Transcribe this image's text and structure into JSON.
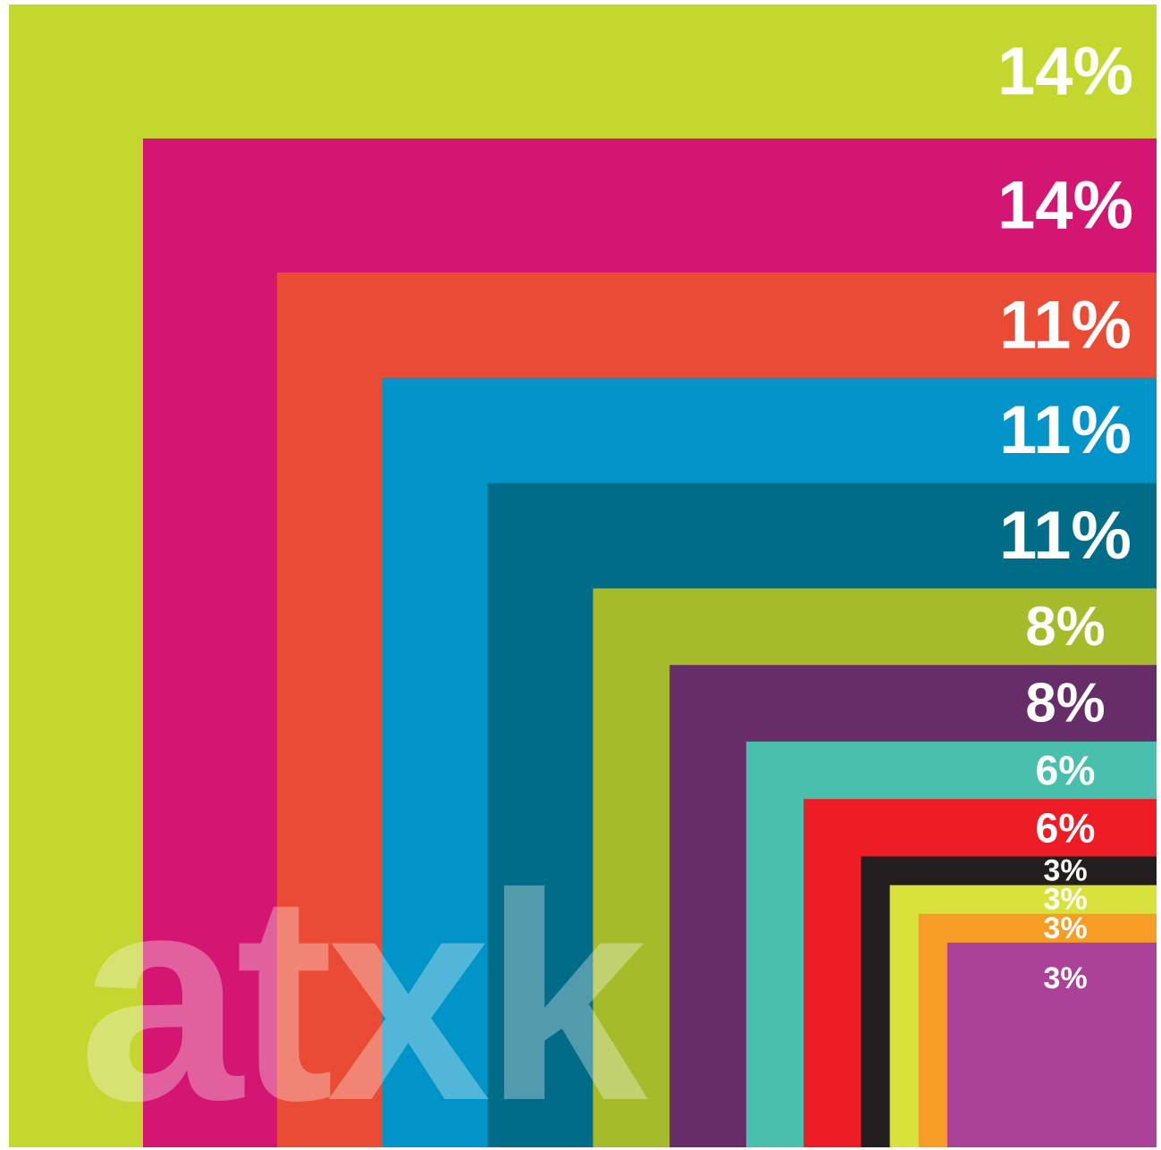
{
  "chart_data": {
    "type": "bar",
    "layout": "nested-squares",
    "values": [
      14,
      14,
      11,
      11,
      11,
      8,
      8,
      6,
      6,
      3,
      3,
      3,
      3
    ],
    "labels": [
      "14%",
      "14%",
      "11%",
      "11%",
      "11%",
      "8%",
      "8%",
      "6%",
      "6%",
      "3%",
      "3%",
      "3%",
      "3%"
    ],
    "colors": [
      "#c3d72f",
      "#d31671",
      "#e94b35",
      "#0094c8",
      "#006c87",
      "#a6bb2a",
      "#662d68",
      "#49c0ad",
      "#ee1c24",
      "#231f20",
      "#d8e23a",
      "#f79c25",
      "#ab4297"
    ],
    "title": "",
    "xlabel": "",
    "ylabel": "",
    "grid": false,
    "legend": "none"
  },
  "watermark": {
    "text": "atxk"
  }
}
